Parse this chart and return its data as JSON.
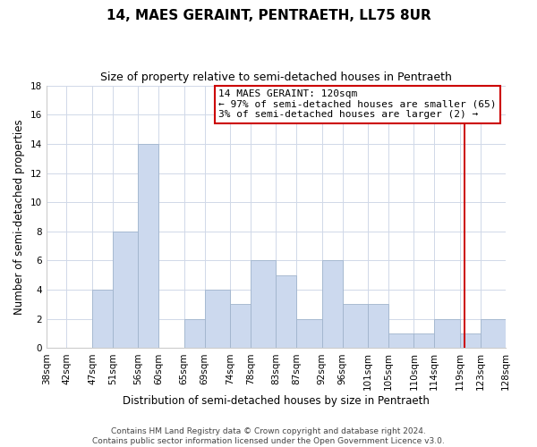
{
  "title": "14, MAES GERAINT, PENTRAETH, LL75 8UR",
  "subtitle": "Size of property relative to semi-detached houses in Pentraeth",
  "xlabel": "Distribution of semi-detached houses by size in Pentraeth",
  "ylabel": "Number of semi-detached properties",
  "footer_line1": "Contains HM Land Registry data © Crown copyright and database right 2024.",
  "footer_line2": "Contains public sector information licensed under the Open Government Licence v3.0.",
  "bar_left_edges": [
    38,
    42,
    47,
    51,
    56,
    60,
    65,
    69,
    74,
    78,
    83,
    87,
    92,
    96,
    101,
    105,
    110,
    114,
    119,
    123
  ],
  "bar_widths": [
    4,
    5,
    4,
    5,
    4,
    5,
    4,
    5,
    4,
    5,
    4,
    5,
    4,
    5,
    4,
    5,
    4,
    5,
    4,
    5
  ],
  "bar_heights": [
    0,
    0,
    4,
    8,
    14,
    0,
    2,
    4,
    3,
    6,
    5,
    2,
    6,
    3,
    3,
    1,
    1,
    2,
    1,
    2
  ],
  "bar_color": "#ccd9ee",
  "bar_edgecolor": "#a0b4cc",
  "x_tick_labels": [
    "38sqm",
    "42sqm",
    "47sqm",
    "51sqm",
    "56sqm",
    "60sqm",
    "65sqm",
    "69sqm",
    "74sqm",
    "78sqm",
    "83sqm",
    "87sqm",
    "92sqm",
    "96sqm",
    "101sqm",
    "105sqm",
    "110sqm",
    "114sqm",
    "119sqm",
    "123sqm",
    "128sqm"
  ],
  "x_tick_positions": [
    38,
    42,
    47,
    51,
    56,
    60,
    65,
    69,
    74,
    78,
    83,
    87,
    92,
    96,
    101,
    105,
    110,
    114,
    119,
    123,
    128
  ],
  "xlim": [
    38,
    128
  ],
  "ylim": [
    0,
    18
  ],
  "yticks": [
    0,
    2,
    4,
    6,
    8,
    10,
    12,
    14,
    16,
    18
  ],
  "property_line_x": 120,
  "property_line_color": "#cc0000",
  "ann_title": "14 MAES GERAINT: 120sqm",
  "ann_line1": "← 97% of semi-detached houses are smaller (65)",
  "ann_line2": "3% of semi-detached houses are larger (2) →",
  "ann_box_facecolor": "#ffffff",
  "ann_box_edgecolor": "#cc0000",
  "grid_color": "#d0d8e8",
  "background_color": "#ffffff",
  "title_fontsize": 11,
  "subtitle_fontsize": 9,
  "xlabel_fontsize": 8.5,
  "ylabel_fontsize": 8.5,
  "tick_fontsize": 7.5,
  "ann_fontsize": 8,
  "footer_fontsize": 6.5
}
